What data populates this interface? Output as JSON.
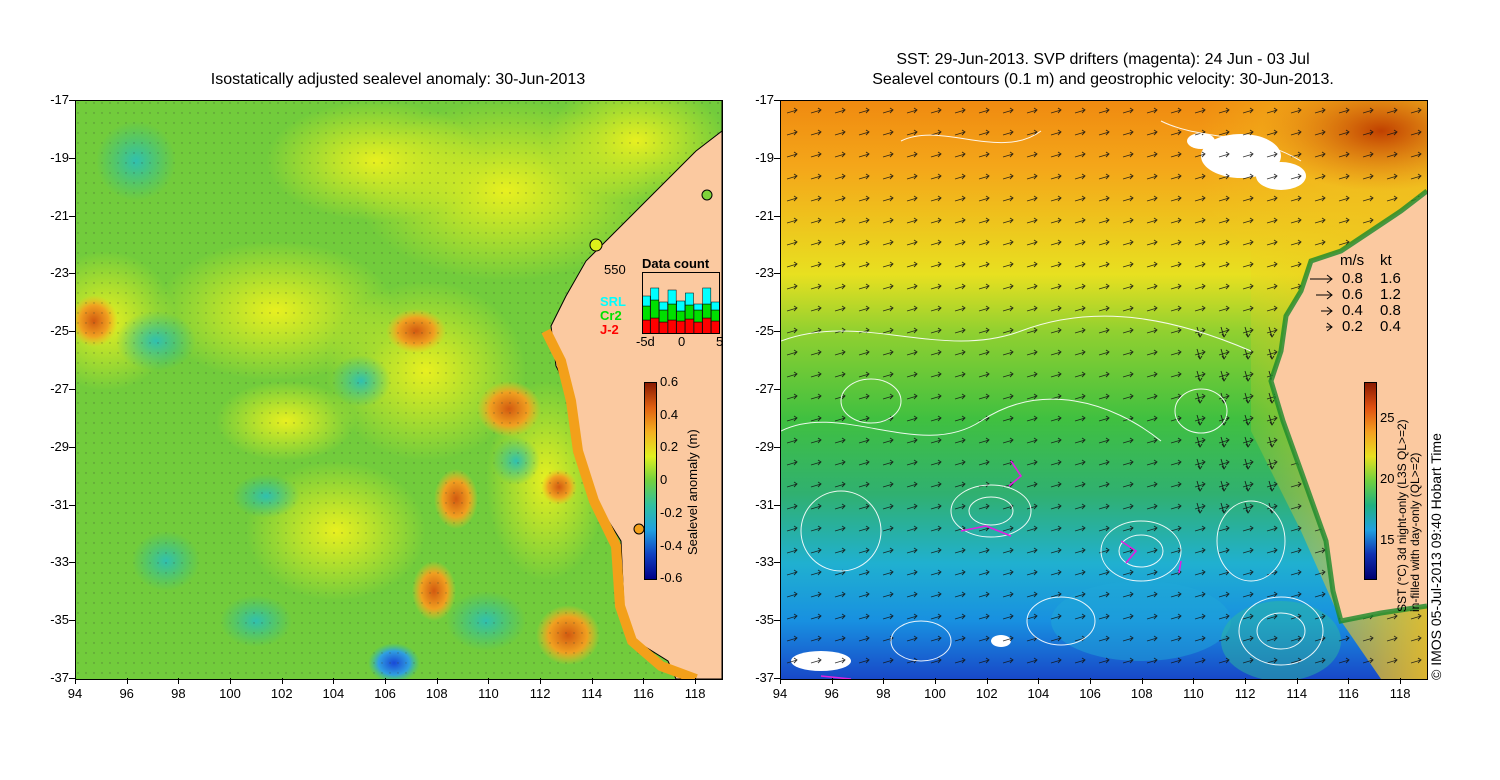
{
  "left_panel": {
    "title": "Isostatically adjusted sealevel anomaly: 30-Jun-2013",
    "colorbar": {
      "label": "Sealevel anomaly (m)",
      "ticks": [
        "0.6",
        "0.4",
        "0.2",
        "0",
        "-0.2",
        "-0.4",
        "-0.6"
      ]
    },
    "data_count": {
      "title": "Data count",
      "max_label": "550",
      "x_ticks": [
        "-5d",
        "0",
        "5"
      ],
      "legend": [
        {
          "name": "SRL",
          "color": "#00ffff"
        },
        {
          "name": "Cr2",
          "color": "#00e000"
        },
        {
          "name": "J-2",
          "color": "#ff0000"
        }
      ]
    }
  },
  "right_panel": {
    "title_line1": "SST: 29-Jun-2013. SVP drifters (magenta): 24 Jun - 03 Jul",
    "title_line2": "Sealevel contours (0.1 m) and geostrophic velocity: 30-Jun-2013.",
    "velocity_legend": {
      "header_ms": "m/s",
      "header_kt": "kt",
      "rows": [
        {
          "ms": "0.8",
          "kt": "1.6"
        },
        {
          "ms": "0.6",
          "kt": "1.2"
        },
        {
          "ms": "0.4",
          "kt": "0.8"
        },
        {
          "ms": "0.2",
          "kt": "0.4"
        }
      ]
    },
    "colorbar": {
      "label_line1": "SST (°C) 3d night-only (L3S QL>=2)",
      "label_line2": "in-filled with day-only (QL>=2)",
      "ticks": [
        "25",
        "20",
        "15"
      ]
    }
  },
  "axes": {
    "y_ticks": [
      "-17",
      "-19",
      "-21",
      "-23",
      "-25",
      "-27",
      "-29",
      "-31",
      "-33",
      "-35",
      "-37"
    ],
    "x_ticks": [
      "94",
      "96",
      "98",
      "100",
      "102",
      "104",
      "106",
      "108",
      "110",
      "112",
      "114",
      "116",
      "118"
    ]
  },
  "credit": "© IMOS 05-Jul-2013 09:40 Hobart Time",
  "colors": {
    "land": "#fbc9a0",
    "sla_background": "#7ed33a",
    "sst_warm": "#f4a21a",
    "sst_mid": "#3cc03c",
    "sst_cool": "#1aa0d8"
  }
}
